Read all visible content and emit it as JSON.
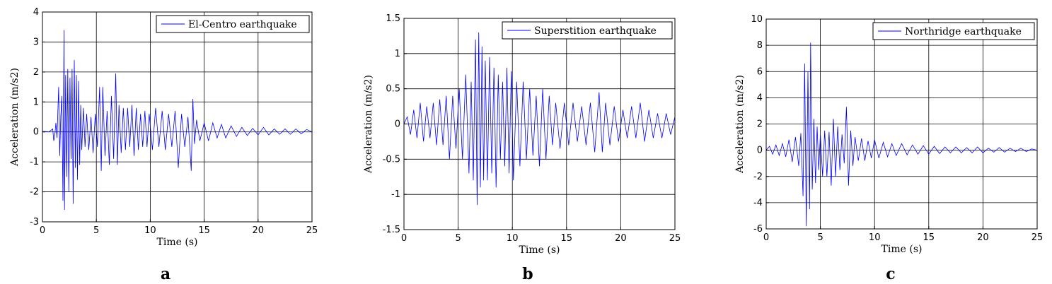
{
  "chart_data": [
    {
      "type": "line",
      "panel_letter": "a",
      "xlabel": "Time (s)",
      "ylabel": "Acceleration (m/s2)",
      "xlim": [
        0,
        25
      ],
      "ylim": [
        -3,
        4
      ],
      "xticks": [
        0,
        5,
        10,
        15,
        20,
        25
      ],
      "yticks": [
        -3,
        -2,
        -1,
        0,
        1,
        2,
        3,
        4
      ],
      "grid": true,
      "legend_position": "top-right",
      "color": "#0000ff",
      "series": [
        {
          "name": "El-Centro earthquake",
          "x": [
            0,
            0.6,
            0.95,
            1.05,
            1.15,
            1.25,
            1.35,
            1.5,
            1.6,
            1.7,
            1.8,
            1.9,
            2.0,
            2.05,
            2.15,
            2.25,
            2.35,
            2.45,
            2.55,
            2.65,
            2.75,
            2.85,
            2.95,
            3.05,
            3.15,
            3.25,
            3.35,
            3.45,
            3.55,
            3.65,
            3.8,
            3.95,
            4.1,
            4.3,
            4.5,
            4.7,
            4.9,
            5.1,
            5.3,
            5.45,
            5.6,
            5.8,
            6.0,
            6.2,
            6.4,
            6.6,
            6.8,
            6.95,
            7.1,
            7.3,
            7.5,
            7.7,
            7.9,
            8.1,
            8.3,
            8.5,
            8.7,
            8.9,
            9.1,
            9.3,
            9.5,
            9.7,
            9.9,
            10.2,
            10.5,
            10.8,
            11.1,
            11.4,
            11.7,
            12.0,
            12.3,
            12.6,
            12.9,
            13.2,
            13.5,
            13.8,
            13.95,
            14.1,
            14.3,
            14.6,
            15.0,
            15.4,
            15.8,
            16.2,
            16.6,
            17.0,
            17.5,
            18.0,
            18.5,
            19.0,
            19.5,
            20.0,
            20.5,
            21.0,
            21.5,
            22.0,
            22.5,
            23.0,
            23.5,
            24.0,
            24.5,
            25.0
          ],
          "y": [
            0.02,
            0.0,
            0.1,
            -0.3,
            -0.1,
            0.3,
            -0.2,
            1.5,
            -0.8,
            0.5,
            1.2,
            -2.3,
            3.4,
            -2.6,
            1.9,
            -1.5,
            2.1,
            -2.0,
            1.8,
            -0.9,
            2.1,
            -2.4,
            2.4,
            -1.2,
            1.9,
            -1.6,
            1.7,
            -1.1,
            0.9,
            -0.6,
            0.8,
            -0.5,
            0.6,
            -0.6,
            0.5,
            -0.7,
            0.6,
            -0.5,
            1.5,
            -1.3,
            1.5,
            -0.8,
            0.7,
            -1.1,
            1.2,
            -0.9,
            1.95,
            -1.1,
            0.9,
            -0.7,
            0.8,
            -0.6,
            0.8,
            -0.5,
            0.9,
            -0.8,
            0.8,
            -0.6,
            0.6,
            -0.5,
            0.7,
            -0.5,
            0.6,
            -0.6,
            0.8,
            -0.5,
            0.7,
            -0.6,
            0.6,
            -0.5,
            0.7,
            -1.2,
            0.6,
            -0.5,
            0.5,
            -1.3,
            1.1,
            -0.4,
            0.4,
            -0.3,
            0.3,
            -0.3,
            0.3,
            -0.2,
            0.25,
            -0.2,
            0.2,
            -0.15,
            0.15,
            -0.12,
            0.12,
            -0.1,
            0.15,
            -0.1,
            0.1,
            -0.08,
            0.1,
            -0.08,
            0.1,
            -0.06,
            0.08,
            0.0
          ]
        }
      ]
    },
    {
      "type": "line",
      "panel_letter": "b",
      "xlabel": "Time (s)",
      "ylabel": "Acceleration (m/s2)",
      "xlim": [
        0,
        25
      ],
      "ylim": [
        -1.5,
        1.5
      ],
      "xticks": [
        0,
        5,
        10,
        15,
        20,
        25
      ],
      "yticks": [
        -1.5,
        -1,
        -0.5,
        0,
        0.5,
        1,
        1.5
      ],
      "grid": true,
      "legend_position": "top-right",
      "color": "#0000ff",
      "series": [
        {
          "name": "Superstition earthquake",
          "x": [
            0,
            0.3,
            0.6,
            0.9,
            1.2,
            1.5,
            1.8,
            2.1,
            2.4,
            2.7,
            3.0,
            3.3,
            3.6,
            3.9,
            4.2,
            4.5,
            4.8,
            5.1,
            5.4,
            5.7,
            6.0,
            6.2,
            6.4,
            6.6,
            6.75,
            6.9,
            7.05,
            7.2,
            7.35,
            7.5,
            7.7,
            7.9,
            8.1,
            8.3,
            8.5,
            8.7,
            8.9,
            9.1,
            9.3,
            9.5,
            9.7,
            9.9,
            10.1,
            10.4,
            10.7,
            11.0,
            11.3,
            11.6,
            11.9,
            12.2,
            12.5,
            12.8,
            13.1,
            13.4,
            13.7,
            14.0,
            14.4,
            14.8,
            15.2,
            15.6,
            16.0,
            16.4,
            16.8,
            17.2,
            17.6,
            18.0,
            18.3,
            18.6,
            19.0,
            19.4,
            19.8,
            20.2,
            20.6,
            21.0,
            21.4,
            21.8,
            22.2,
            22.6,
            23.0,
            23.4,
            23.8,
            24.2,
            24.6,
            25.0
          ],
          "y": [
            0.0,
            0.1,
            -0.15,
            0.2,
            -0.2,
            0.3,
            -0.25,
            0.25,
            -0.2,
            0.3,
            -0.3,
            0.35,
            -0.3,
            0.4,
            -0.5,
            0.4,
            -0.35,
            0.5,
            -0.5,
            0.7,
            -0.7,
            0.6,
            -0.8,
            1.2,
            -1.15,
            1.3,
            -0.9,
            1.1,
            -0.8,
            0.9,
            -0.8,
            0.95,
            -0.7,
            0.8,
            -0.9,
            0.7,
            -0.5,
            0.6,
            -0.6,
            0.8,
            -0.7,
            0.75,
            -0.8,
            0.6,
            -0.6,
            0.6,
            -0.5,
            0.5,
            -0.45,
            0.4,
            -0.6,
            0.5,
            -0.5,
            0.4,
            -0.3,
            0.3,
            -0.35,
            0.3,
            -0.3,
            0.3,
            -0.25,
            0.25,
            -0.3,
            0.3,
            -0.4,
            0.45,
            -0.4,
            0.3,
            -0.3,
            0.25,
            -0.25,
            0.2,
            -0.2,
            0.25,
            -0.2,
            0.3,
            -0.25,
            0.2,
            -0.2,
            0.15,
            -0.2,
            0.15,
            -0.15,
            0.1
          ]
        }
      ]
    },
    {
      "type": "line",
      "panel_letter": "c",
      "xlabel": "Time (s)",
      "ylabel": "Acceleration (m/s2)",
      "xlim": [
        0,
        25
      ],
      "ylim": [
        -6,
        10
      ],
      "xticks": [
        0,
        5,
        10,
        15,
        20,
        25
      ],
      "yticks": [
        -6,
        -4,
        -2,
        0,
        2,
        4,
        6,
        8,
        10
      ],
      "grid": true,
      "legend_position": "top-right",
      "color": "#0000ff",
      "series": [
        {
          "name": "Northridge earthquake",
          "x": [
            0,
            0.3,
            0.6,
            0.9,
            1.2,
            1.5,
            1.8,
            2.1,
            2.4,
            2.7,
            3.0,
            3.2,
            3.4,
            3.55,
            3.7,
            3.85,
            4.0,
            4.1,
            4.25,
            4.4,
            4.55,
            4.7,
            4.85,
            5.0,
            5.2,
            5.4,
            5.6,
            5.8,
            6.0,
            6.2,
            6.4,
            6.6,
            6.8,
            7.0,
            7.2,
            7.4,
            7.6,
            7.8,
            8.0,
            8.2,
            8.5,
            8.8,
            9.1,
            9.4,
            9.7,
            10.0,
            10.4,
            10.8,
            11.2,
            11.6,
            12.0,
            12.5,
            13.0,
            13.5,
            14.0,
            14.5,
            15.0,
            15.5,
            16.0,
            16.5,
            17.0,
            17.5,
            18.0,
            18.5,
            19.0,
            19.5,
            20.0,
            20.5,
            21.0,
            21.5,
            22.0,
            22.5,
            23.0,
            23.5,
            24.0,
            24.5,
            25.0
          ],
          "y": [
            0.0,
            0.3,
            -0.3,
            0.4,
            -0.4,
            0.5,
            -0.5,
            0.8,
            -0.9,
            1.0,
            -1.2,
            1.3,
            -3.5,
            6.6,
            -5.8,
            6.0,
            -4.5,
            8.2,
            -3.0,
            2.4,
            -2.5,
            1.8,
            -1.5,
            1.2,
            -2.0,
            1.5,
            -2.0,
            1.4,
            -2.7,
            2.4,
            -2.0,
            1.8,
            -1.5,
            1.2,
            -1.0,
            3.3,
            -2.7,
            1.5,
            -1.2,
            1.0,
            -0.8,
            0.9,
            -0.8,
            0.7,
            -0.6,
            0.8,
            -0.6,
            0.6,
            -0.5,
            0.5,
            -0.4,
            0.5,
            -0.35,
            0.4,
            -0.3,
            0.35,
            -0.3,
            0.3,
            -0.25,
            0.25,
            -0.2,
            0.25,
            -0.2,
            0.2,
            -0.2,
            0.25,
            -0.2,
            0.15,
            -0.15,
            0.2,
            -0.15,
            0.15,
            -0.1,
            0.15,
            -0.1,
            0.1,
            0.0
          ]
        }
      ]
    }
  ]
}
